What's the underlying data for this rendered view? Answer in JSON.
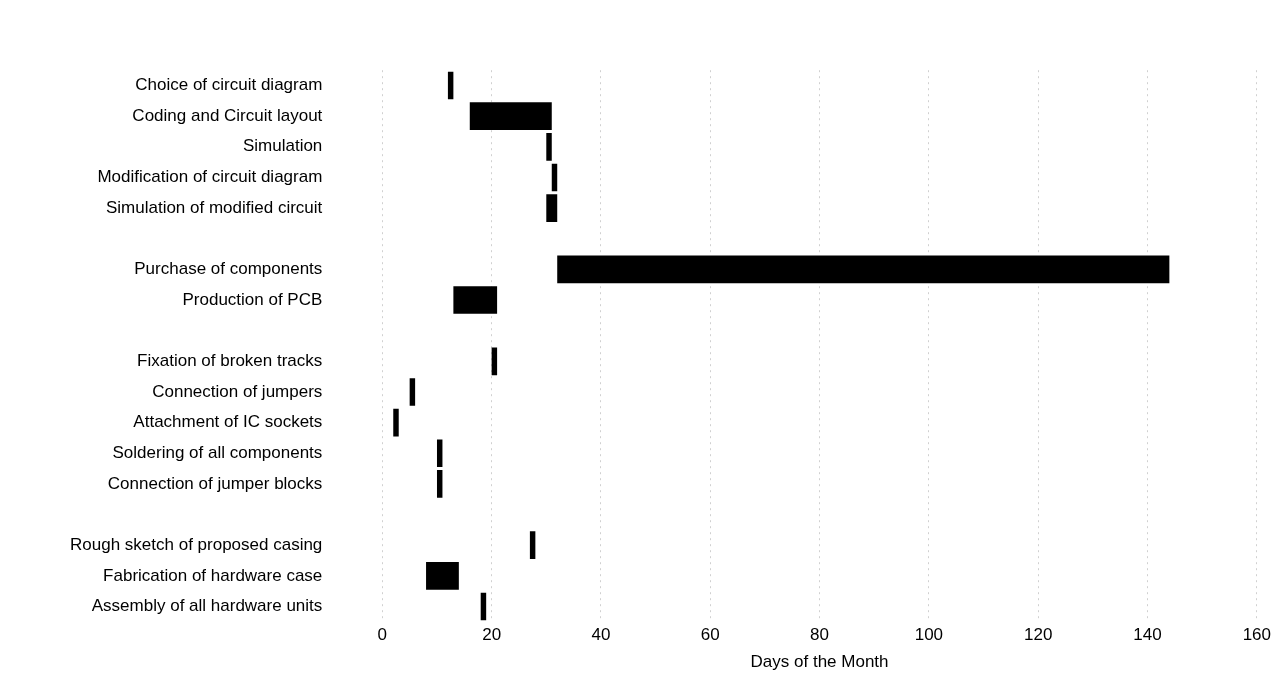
{
  "chart_data": {
    "type": "bar",
    "orientation": "horizontal",
    "xlabel": "Days of the Month",
    "categories": [
      "Choice of circuit diagram",
      "Coding and Circuit layout",
      "Simulation",
      "Modification of circuit diagram",
      "Simulation of modified circuit",
      null,
      "Purchase of components",
      "Production of PCB",
      null,
      "Fixation of broken tracks",
      "Connection of jumpers",
      "Attachment of IC sockets",
      "Soldering of all components",
      "Connection of jumper blocks",
      null,
      "Rough sketch of proposed casing",
      "Fabrication of hardware case",
      "Assembly of all hardware units"
    ],
    "base": [
      12,
      16,
      30,
      31,
      30,
      null,
      32,
      13,
      null,
      20,
      5,
      2,
      10,
      10,
      null,
      27,
      8,
      18
    ],
    "values": [
      1,
      15,
      1,
      1,
      2,
      null,
      112,
      8,
      null,
      1,
      1,
      1,
      1,
      1,
      null,
      1,
      6,
      1
    ],
    "color": "#000000",
    "xlim": [
      0,
      160
    ],
    "xticks": [
      0,
      20,
      40,
      60,
      80,
      100,
      120,
      140,
      160
    ],
    "grid": "x"
  }
}
